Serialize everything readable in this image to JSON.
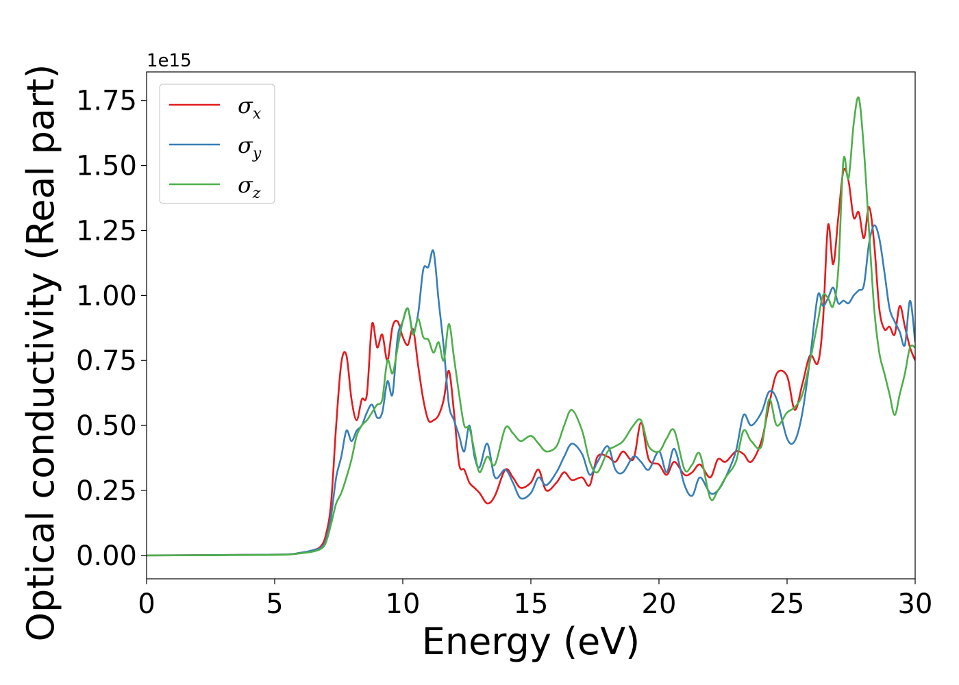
{
  "chart_data": {
    "type": "line",
    "title": "",
    "xlabel": "Energy (eV)",
    "ylabel": "Optical conductivity (Real part)",
    "y_offset_label": "1e15",
    "xlim": [
      0,
      30
    ],
    "ylim": [
      -0.09,
      1.86
    ],
    "xticks": [
      0,
      5,
      10,
      15,
      20,
      25,
      30
    ],
    "xtick_labels": [
      "0",
      "5",
      "10",
      "15",
      "20",
      "25",
      "30"
    ],
    "yticks": [
      0,
      0.25,
      0.5,
      0.75,
      1.0,
      1.25,
      1.5,
      1.75
    ],
    "ytick_labels": [
      "0.00",
      "0.25",
      "0.50",
      "0.75",
      "1.00",
      "1.25",
      "1.50",
      "1.75"
    ],
    "grid": false,
    "legend_position": "top-left",
    "series": [
      {
        "name": "σ",
        "subscript": "x",
        "color": "#e41a1c",
        "x": [
          0,
          5,
          6,
          6.5,
          6.8,
          7.0,
          7.2,
          7.4,
          7.6,
          7.8,
          8.0,
          8.2,
          8.4,
          8.6,
          8.8,
          9.0,
          9.2,
          9.4,
          9.6,
          9.8,
          10.0,
          10.2,
          10.4,
          10.6,
          10.8,
          11.0,
          11.2,
          11.4,
          11.6,
          11.8,
          12.0,
          12.2,
          12.4,
          12.6,
          12.8,
          13.0,
          13.3,
          13.6,
          14.0,
          14.3,
          14.6,
          15.0,
          15.3,
          15.6,
          16.0,
          16.3,
          16.6,
          17.0,
          17.3,
          17.6,
          18.0,
          18.3,
          18.6,
          19.0,
          19.3,
          19.6,
          20.0,
          20.3,
          20.6,
          21.0,
          21.3,
          21.6,
          22.0,
          22.3,
          22.6,
          23.0,
          23.3,
          23.6,
          24.0,
          24.3,
          24.6,
          25.0,
          25.3,
          25.6,
          25.9,
          26.2,
          26.4,
          26.6,
          26.8,
          27.0,
          27.2,
          27.4,
          27.6,
          27.8,
          28.0,
          28.2,
          28.4,
          28.6,
          28.8,
          29.0,
          29.2,
          29.4,
          29.6,
          29.8,
          30.0
        ],
        "values": [
          0,
          0.003,
          0.01,
          0.02,
          0.035,
          0.08,
          0.2,
          0.5,
          0.74,
          0.77,
          0.6,
          0.52,
          0.6,
          0.62,
          0.89,
          0.8,
          0.85,
          0.75,
          0.88,
          0.9,
          0.84,
          0.81,
          0.87,
          0.73,
          0.6,
          0.52,
          0.52,
          0.54,
          0.6,
          0.71,
          0.55,
          0.35,
          0.33,
          0.28,
          0.26,
          0.24,
          0.2,
          0.23,
          0.33,
          0.3,
          0.26,
          0.28,
          0.33,
          0.25,
          0.28,
          0.32,
          0.29,
          0.3,
          0.27,
          0.38,
          0.38,
          0.36,
          0.4,
          0.37,
          0.51,
          0.37,
          0.35,
          0.31,
          0.36,
          0.31,
          0.32,
          0.35,
          0.3,
          0.37,
          0.36,
          0.4,
          0.39,
          0.36,
          0.44,
          0.58,
          0.7,
          0.69,
          0.56,
          0.66,
          0.77,
          0.74,
          0.9,
          1.27,
          1.12,
          1.3,
          1.48,
          1.44,
          1.3,
          1.32,
          1.22,
          1.34,
          1.2,
          0.95,
          0.87,
          0.88,
          0.85,
          0.96,
          0.88,
          0.8,
          0.75
        ]
      },
      {
        "name": "σ",
        "subscript": "y",
        "color": "#377eb8",
        "x": [
          0,
          5,
          6,
          6.5,
          6.8,
          7.0,
          7.2,
          7.4,
          7.6,
          7.8,
          8.0,
          8.2,
          8.4,
          8.6,
          8.8,
          9.0,
          9.2,
          9.4,
          9.6,
          9.8,
          10.0,
          10.2,
          10.4,
          10.6,
          10.8,
          11.0,
          11.2,
          11.4,
          11.6,
          11.8,
          12.0,
          12.2,
          12.4,
          12.6,
          12.8,
          13.0,
          13.3,
          13.6,
          14.0,
          14.3,
          14.6,
          15.0,
          15.3,
          15.6,
          16.0,
          16.3,
          16.6,
          17.0,
          17.3,
          17.6,
          18.0,
          18.3,
          18.6,
          19.0,
          19.3,
          19.6,
          20.0,
          20.3,
          20.6,
          21.0,
          21.3,
          21.6,
          22.0,
          22.3,
          22.6,
          23.0,
          23.3,
          23.6,
          24.0,
          24.3,
          24.6,
          25.0,
          25.3,
          25.6,
          25.9,
          26.2,
          26.4,
          26.6,
          26.8,
          27.0,
          27.2,
          27.4,
          27.6,
          27.8,
          28.0,
          28.2,
          28.4,
          28.6,
          28.8,
          29.0,
          29.2,
          29.4,
          29.6,
          29.8,
          30.0
        ],
        "values": [
          0,
          0.003,
          0.01,
          0.02,
          0.03,
          0.06,
          0.15,
          0.3,
          0.38,
          0.48,
          0.44,
          0.48,
          0.5,
          0.55,
          0.58,
          0.53,
          0.55,
          0.67,
          0.62,
          0.84,
          0.9,
          0.95,
          0.86,
          0.93,
          1.1,
          1.11,
          1.17,
          0.98,
          0.8,
          0.58,
          0.52,
          0.46,
          0.4,
          0.5,
          0.38,
          0.34,
          0.43,
          0.3,
          0.33,
          0.28,
          0.22,
          0.24,
          0.3,
          0.27,
          0.32,
          0.38,
          0.43,
          0.39,
          0.31,
          0.36,
          0.42,
          0.33,
          0.32,
          0.38,
          0.36,
          0.33,
          0.4,
          0.32,
          0.41,
          0.27,
          0.23,
          0.3,
          0.24,
          0.25,
          0.3,
          0.4,
          0.54,
          0.5,
          0.55,
          0.63,
          0.6,
          0.45,
          0.44,
          0.55,
          0.76,
          1.0,
          0.96,
          0.99,
          1.03,
          0.97,
          0.98,
          0.97,
          1.0,
          1.02,
          1.04,
          1.2,
          1.27,
          1.22,
          1.09,
          0.95,
          0.9,
          0.86,
          0.81,
          0.98,
          0.82
        ]
      },
      {
        "name": "σ",
        "subscript": "z",
        "color": "#4daf4a",
        "x": [
          0,
          5,
          6,
          6.5,
          6.8,
          7.0,
          7.2,
          7.4,
          7.6,
          7.8,
          8.0,
          8.2,
          8.4,
          8.6,
          8.8,
          9.0,
          9.2,
          9.4,
          9.6,
          9.8,
          10.0,
          10.2,
          10.4,
          10.6,
          10.8,
          11.0,
          11.2,
          11.4,
          11.6,
          11.8,
          12.0,
          12.2,
          12.4,
          12.6,
          12.8,
          13.0,
          13.3,
          13.6,
          14.0,
          14.3,
          14.6,
          15.0,
          15.3,
          15.6,
          16.0,
          16.3,
          16.6,
          17.0,
          17.3,
          17.6,
          18.0,
          18.3,
          18.6,
          19.0,
          19.3,
          19.6,
          20.0,
          20.3,
          20.6,
          21.0,
          21.3,
          21.6,
          22.0,
          22.3,
          22.6,
          23.0,
          23.3,
          23.6,
          24.0,
          24.3,
          24.6,
          25.0,
          25.3,
          25.6,
          25.9,
          26.2,
          26.4,
          26.6,
          26.8,
          27.0,
          27.2,
          27.4,
          27.6,
          27.8,
          28.0,
          28.2,
          28.4,
          28.6,
          28.8,
          29.0,
          29.2,
          29.4,
          29.6,
          29.8,
          30.0
        ],
        "values": [
          0,
          0.002,
          0.008,
          0.015,
          0.025,
          0.05,
          0.12,
          0.2,
          0.24,
          0.3,
          0.37,
          0.46,
          0.5,
          0.52,
          0.55,
          0.58,
          0.6,
          0.75,
          0.7,
          0.8,
          0.9,
          0.95,
          0.85,
          0.91,
          0.84,
          0.83,
          0.78,
          0.82,
          0.75,
          0.89,
          0.76,
          0.62,
          0.5,
          0.49,
          0.4,
          0.32,
          0.38,
          0.35,
          0.49,
          0.47,
          0.44,
          0.46,
          0.43,
          0.4,
          0.42,
          0.5,
          0.56,
          0.48,
          0.36,
          0.32,
          0.4,
          0.42,
          0.44,
          0.5,
          0.52,
          0.42,
          0.4,
          0.45,
          0.48,
          0.33,
          0.35,
          0.39,
          0.22,
          0.25,
          0.3,
          0.36,
          0.48,
          0.44,
          0.42,
          0.6,
          0.5,
          0.55,
          0.57,
          0.62,
          0.75,
          0.9,
          1.0,
          0.99,
          0.96,
          1.1,
          1.52,
          1.45,
          1.66,
          1.76,
          1.56,
          1.25,
          0.95,
          0.78,
          0.7,
          0.62,
          0.54,
          0.62,
          0.7,
          0.8,
          0.8
        ]
      }
    ]
  }
}
